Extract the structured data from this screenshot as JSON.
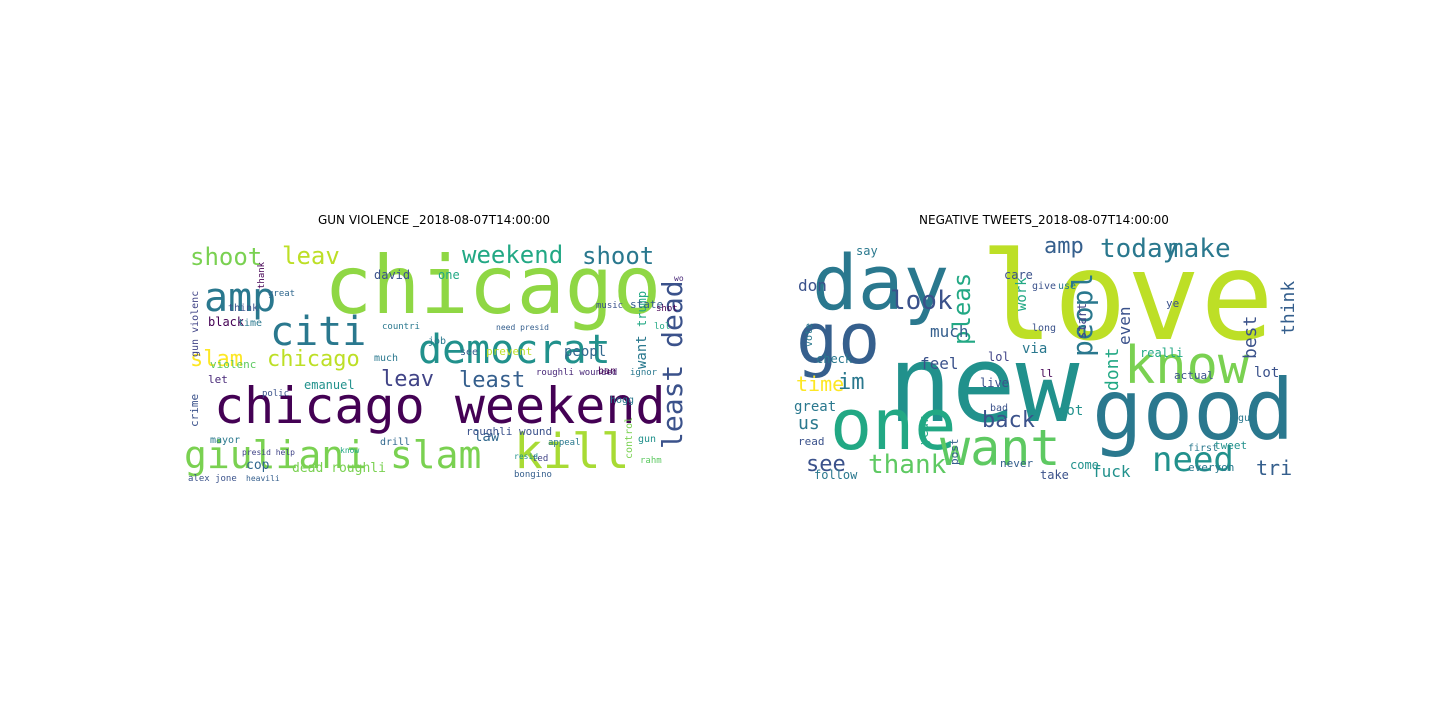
{
  "panels": [
    {
      "title": "GUN VIOLENCE _2018-08-07T14:00:00",
      "words": [
        {
          "text": "chicago",
          "color": "#8fd744"
        },
        {
          "text": "chicago weekend",
          "color": "#440154"
        },
        {
          "text": "giuliani slam",
          "color": "#7ad151"
        },
        {
          "text": "democrat",
          "color": "#21918c"
        },
        {
          "text": "citi",
          "color": "#2a788e"
        },
        {
          "text": "amp",
          "color": "#2a788e"
        },
        {
          "text": "kill",
          "color": "#a8db34"
        },
        {
          "text": "least dead",
          "color": "#3b528b"
        },
        {
          "text": "weekend",
          "color": "#22a884"
        },
        {
          "text": "shoot",
          "color": "#7ad151"
        },
        {
          "text": "shoot",
          "color": "#2a788e"
        },
        {
          "text": "leav",
          "color": "#bddf26"
        },
        {
          "text": "slam",
          "color": "#fde725"
        },
        {
          "text": "chicago",
          "color": "#bddf26"
        },
        {
          "text": "leav",
          "color": "#414487"
        },
        {
          "text": "least",
          "color": "#355f8d"
        },
        {
          "text": "peopl",
          "color": "#31688e"
        },
        {
          "text": "want",
          "color": "#2a788e"
        },
        {
          "text": "trump",
          "color": "#22a884"
        },
        {
          "text": "state",
          "color": "#355f8d"
        },
        {
          "text": "black",
          "color": "#440154"
        },
        {
          "text": "emanuel",
          "color": "#21918c"
        },
        {
          "text": "law",
          "color": "#31688e"
        },
        {
          "text": "cop",
          "color": "#31688e"
        },
        {
          "text": "dead roughli",
          "color": "#7ad151"
        },
        {
          "text": "violenc",
          "color": "#5ec962"
        },
        {
          "text": "think",
          "color": "#3b528b"
        },
        {
          "text": "time",
          "color": "#2a788e"
        },
        {
          "text": "let",
          "color": "#482878"
        },
        {
          "text": "crime",
          "color": "#3b528b"
        },
        {
          "text": "mayor",
          "color": "#2a788e"
        },
        {
          "text": "gun violenc",
          "color": "#414487"
        },
        {
          "text": "david",
          "color": "#3b528b"
        },
        {
          "text": "one",
          "color": "#22a884"
        },
        {
          "text": "job",
          "color": "#2a788e"
        },
        {
          "text": "see",
          "color": "#355f8d"
        },
        {
          "text": "prevent",
          "color": "#bddf26"
        },
        {
          "text": "roughli wounded",
          "color": "#482878"
        },
        {
          "text": "roughli wound",
          "color": "#3b528b"
        },
        {
          "text": "ban",
          "color": "#440154"
        },
        {
          "text": "much",
          "color": "#2a788e"
        },
        {
          "text": "gun",
          "color": "#21918c"
        },
        {
          "text": "control",
          "color": "#7ad151"
        },
        {
          "text": "hogg",
          "color": "#2a788e"
        },
        {
          "text": "drill",
          "color": "#31688e"
        },
        {
          "text": "bongino",
          "color": "#355f8d"
        },
        {
          "text": "alex jone",
          "color": "#3b528b"
        },
        {
          "text": "heavili",
          "color": "#355f8d"
        },
        {
          "text": "ted",
          "color": "#414487"
        },
        {
          "text": "resid",
          "color": "#21918c"
        },
        {
          "text": "appeal",
          "color": "#2a788e"
        },
        {
          "text": "lol",
          "color": "#22a884"
        },
        {
          "text": "shot",
          "color": "#440154"
        },
        {
          "text": "music",
          "color": "#3b528b"
        },
        {
          "text": "work",
          "color": "#482878"
        },
        {
          "text": "ignor",
          "color": "#2a788e"
        },
        {
          "text": "need presid",
          "color": "#355f8d"
        },
        {
          "text": "countri",
          "color": "#2a788e"
        },
        {
          "text": "great",
          "color": "#31688e"
        },
        {
          "text": "thank",
          "color": "#440154"
        },
        {
          "text": "polic",
          "color": "#3b528b"
        },
        {
          "text": "presid help",
          "color": "#414487"
        },
        {
          "text": "know",
          "color": "#22a884"
        },
        {
          "text": "rahm",
          "color": "#5ec962"
        }
      ]
    },
    {
      "title": "NEGATIVE TWEETS_2018-08-07T14:00:00",
      "words": [
        {
          "text": "love",
          "color": "#bddf26"
        },
        {
          "text": "new",
          "color": "#21918c"
        },
        {
          "text": "good",
          "color": "#2a788e"
        },
        {
          "text": "day",
          "color": "#2a788e"
        },
        {
          "text": "one",
          "color": "#22a884"
        },
        {
          "text": "go",
          "color": "#355f8d"
        },
        {
          "text": "want",
          "color": "#5ec962"
        },
        {
          "text": "know",
          "color": "#7ad151"
        },
        {
          "text": "need",
          "color": "#21918c"
        },
        {
          "text": "make",
          "color": "#2a788e"
        },
        {
          "text": "today",
          "color": "#2a788e"
        },
        {
          "text": "look",
          "color": "#3b528b"
        },
        {
          "text": "peopl",
          "color": "#2a788e"
        },
        {
          "text": "pleas",
          "color": "#22a884"
        },
        {
          "text": "amp",
          "color": "#355f8d"
        },
        {
          "text": "thank",
          "color": "#5ec962"
        },
        {
          "text": "see",
          "color": "#3b528b"
        },
        {
          "text": "back",
          "color": "#3b528b"
        },
        {
          "text": "time",
          "color": "#fde725"
        },
        {
          "text": "im",
          "color": "#2a788e"
        },
        {
          "text": "don",
          "color": "#3b528b"
        },
        {
          "text": "say",
          "color": "#2a788e"
        },
        {
          "text": "work",
          "color": "#22a884"
        },
        {
          "text": "much",
          "color": "#355f8d"
        },
        {
          "text": "feel",
          "color": "#3b528b"
        },
        {
          "text": "check",
          "color": "#2a788e"
        },
        {
          "text": "us",
          "color": "#2a788e"
        },
        {
          "text": "great",
          "color": "#2a788e"
        },
        {
          "text": "dont",
          "color": "#22a884"
        },
        {
          "text": "even",
          "color": "#3b528b"
        },
        {
          "text": "via",
          "color": "#2a788e"
        },
        {
          "text": "got",
          "color": "#21918c"
        },
        {
          "text": "fuck",
          "color": "#21918c"
        },
        {
          "text": "best",
          "color": "#3b528b"
        },
        {
          "text": "think",
          "color": "#355f8d"
        },
        {
          "text": "lot",
          "color": "#3b528b"
        },
        {
          "text": "tri",
          "color": "#355f8d"
        },
        {
          "text": "live",
          "color": "#3b528b"
        },
        {
          "text": "vote",
          "color": "#2a788e"
        },
        {
          "text": "lol",
          "color": "#414487"
        },
        {
          "text": "read",
          "color": "#3b528b"
        },
        {
          "text": "follow",
          "color": "#2a788e"
        },
        {
          "text": "post",
          "color": "#355f8d"
        },
        {
          "text": "year",
          "color": "#22a884"
        },
        {
          "text": "never",
          "color": "#355f8d"
        },
        {
          "text": "take",
          "color": "#3b528b"
        },
        {
          "text": "come",
          "color": "#21918c"
        },
        {
          "text": "care",
          "color": "#3b528b"
        },
        {
          "text": "realli",
          "color": "#22a884"
        },
        {
          "text": "start",
          "color": "#414487"
        },
        {
          "text": "actual",
          "color": "#3b528b"
        },
        {
          "text": "everyon",
          "color": "#2a788e"
        },
        {
          "text": "ye",
          "color": "#3b528b"
        },
        {
          "text": "ll",
          "color": "#440154"
        },
        {
          "text": "give",
          "color": "#3b528b"
        },
        {
          "text": "use",
          "color": "#2a788e"
        },
        {
          "text": "long",
          "color": "#3b528b"
        },
        {
          "text": "bad",
          "color": "#3b528b"
        },
        {
          "text": "tweet",
          "color": "#21918c"
        },
        {
          "text": "first",
          "color": "#2a788e"
        },
        {
          "text": "guy",
          "color": "#2a788e"
        }
      ]
    }
  ]
}
